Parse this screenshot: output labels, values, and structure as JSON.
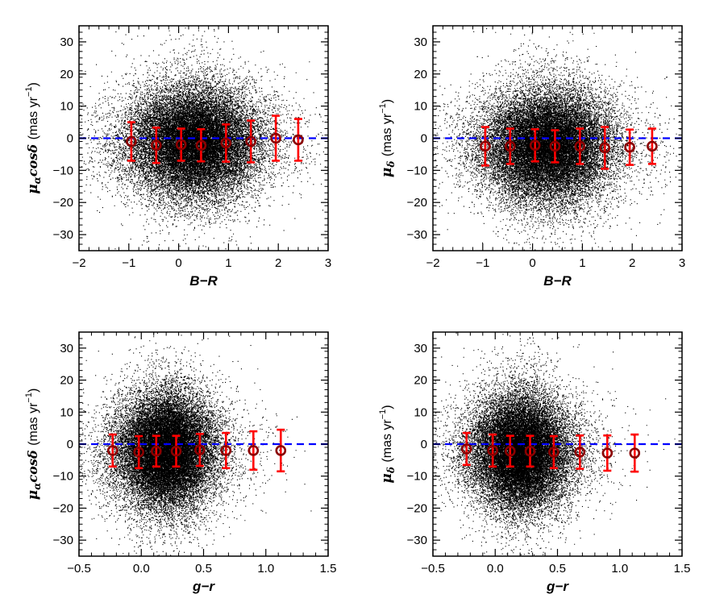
{
  "colors": {
    "points": "#000000",
    "mean_marker": "#8b0000",
    "error_bar": "#ff0000",
    "zero_line": "#0000ff"
  },
  "chart_data": [
    {
      "type": "scatter",
      "xlabel": "B−R",
      "ylabel": {
        "symbol": "μ",
        "sub": "α",
        "tail": "cosδ",
        "unit_pre": "(mas yr",
        "unit_exp": "−1",
        "unit_post": ")"
      },
      "xlim": [
        -2,
        3
      ],
      "ylim": [
        -35,
        35
      ],
      "xticks": [
        -2,
        -1,
        0,
        1,
        2,
        3
      ],
      "xtick_labels": [
        "−2",
        "−1",
        "0",
        "1",
        "2",
        "3"
      ],
      "yticks": [
        -30,
        -20,
        -10,
        0,
        10,
        20,
        30
      ],
      "ytick_labels": [
        "−30",
        "−20",
        "−10",
        "0",
        "10",
        "20",
        "30"
      ],
      "zero_line": 0,
      "cloud": {
        "x_center": 0.3,
        "y_center": -1.2,
        "x_sigma": 0.62,
        "y_sigma": 8.2
      },
      "binned_means": {
        "x": [
          -0.95,
          -0.45,
          0.05,
          0.45,
          0.95,
          1.45,
          1.95,
          2.4
        ],
        "y": [
          -1.0,
          -2.2,
          -2.0,
          -2.2,
          -1.5,
          -1.0,
          0.0,
          -0.5
        ],
        "err": [
          6.0,
          5.5,
          5.0,
          5.0,
          5.8,
          6.5,
          7.0,
          6.5
        ]
      }
    },
    {
      "type": "scatter",
      "xlabel": "B−R",
      "ylabel": {
        "symbol": "μ",
        "sub": "δ",
        "tail": "",
        "unit_pre": "(mas yr",
        "unit_exp": "−1",
        "unit_post": ")"
      },
      "xlim": [
        -2,
        3
      ],
      "ylim": [
        -35,
        35
      ],
      "xticks": [
        -2,
        -1,
        0,
        1,
        2,
        3
      ],
      "xtick_labels": [
        "−2",
        "−1",
        "0",
        "1",
        "2",
        "3"
      ],
      "yticks": [
        -30,
        -20,
        -10,
        0,
        10,
        20,
        30
      ],
      "ytick_labels": [
        "−30",
        "−20",
        "−10",
        "0",
        "10",
        "20",
        "30"
      ],
      "zero_line": 0,
      "cloud": {
        "x_center": 0.3,
        "y_center": -2.5,
        "x_sigma": 0.62,
        "y_sigma": 8.2
      },
      "binned_means": {
        "x": [
          -0.95,
          -0.45,
          0.05,
          0.45,
          0.95,
          1.45,
          1.95,
          2.4
        ],
        "y": [
          -2.5,
          -2.5,
          -2.2,
          -2.5,
          -2.5,
          -3.0,
          -2.8,
          -2.5
        ],
        "err": [
          6.0,
          5.5,
          5.0,
          5.0,
          5.5,
          6.5,
          5.5,
          5.5
        ]
      }
    },
    {
      "type": "scatter",
      "xlabel": "g−r",
      "ylabel": {
        "symbol": "μ",
        "sub": "α",
        "tail": "cosδ",
        "unit_pre": "(mas yr",
        "unit_exp": "−1",
        "unit_post": ")"
      },
      "xlim": [
        -0.5,
        1.5
      ],
      "ylim": [
        -35,
        35
      ],
      "xticks": [
        -0.5,
        0.0,
        0.5,
        1.0,
        1.5
      ],
      "xtick_labels": [
        "−0.5",
        "0.0",
        "0.5",
        "1.0",
        "1.5"
      ],
      "yticks": [
        -30,
        -20,
        -10,
        0,
        10,
        20,
        30
      ],
      "ytick_labels": [
        "−30",
        "−20",
        "−10",
        "0",
        "10",
        "20",
        "30"
      ],
      "zero_line": 0,
      "cloud": {
        "x_center": 0.2,
        "y_center": -2.0,
        "x_sigma": 0.19,
        "y_sigma": 8.5
      },
      "binned_means": {
        "x": [
          -0.23,
          -0.02,
          0.12,
          0.28,
          0.47,
          0.68,
          0.9,
          1.12
        ],
        "y": [
          -2.0,
          -2.5,
          -2.2,
          -2.2,
          -1.8,
          -2.0,
          -2.0,
          -2.0
        ],
        "err": [
          5.0,
          5.0,
          4.8,
          4.8,
          5.0,
          5.5,
          6.0,
          6.5
        ]
      }
    },
    {
      "type": "scatter",
      "xlabel": "g−r",
      "ylabel": {
        "symbol": "μ",
        "sub": "δ",
        "tail": "",
        "unit_pre": "(mas yr",
        "unit_exp": "−1",
        "unit_post": ")"
      },
      "xlim": [
        -0.5,
        1.5
      ],
      "ylim": [
        -35,
        35
      ],
      "xticks": [
        -0.5,
        0.0,
        0.5,
        1.0,
        1.5
      ],
      "xtick_labels": [
        "−0.5",
        "0.0",
        "0.5",
        "1.0",
        "1.5"
      ],
      "yticks": [
        -30,
        -20,
        -10,
        0,
        10,
        20,
        30
      ],
      "ytick_labels": [
        "−30",
        "−20",
        "−10",
        "0",
        "10",
        "20",
        "30"
      ],
      "zero_line": 0,
      "cloud": {
        "x_center": 0.2,
        "y_center": -2.2,
        "x_sigma": 0.19,
        "y_sigma": 8.5
      },
      "binned_means": {
        "x": [
          -0.23,
          -0.02,
          0.12,
          0.28,
          0.47,
          0.68,
          0.9,
          1.12
        ],
        "y": [
          -1.5,
          -2.0,
          -2.2,
          -2.2,
          -2.5,
          -2.5,
          -2.8,
          -2.8
        ],
        "err": [
          5.0,
          5.0,
          4.8,
          4.8,
          5.0,
          5.2,
          5.5,
          5.8
        ]
      }
    }
  ]
}
